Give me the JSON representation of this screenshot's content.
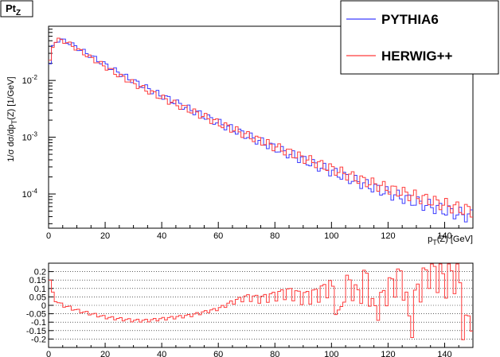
{
  "chart_data": [
    {
      "type": "line",
      "title": "Pt",
      "title_subscript": "Z",
      "xlabel_main": "p",
      "xlabel_sub": "T",
      "xlabel_rest": "(Z) [GeV]",
      "ylabel_main": "1/σ dσ/dp",
      "ylabel_sub": "T",
      "ylabel_rest": "(Z) [1/GeV]",
      "xlim": [
        0,
        150
      ],
      "ylim": [
        2.5e-05,
        0.09
      ],
      "yscale": "log",
      "x_ticks": [
        "0",
        "20",
        "40",
        "60",
        "80",
        "100",
        "120",
        "140"
      ],
      "y_ticks": [
        {
          "base": "10",
          "exp": "-2",
          "value": 0.01
        },
        {
          "base": "10",
          "exp": "-3",
          "value": 0.001
        },
        {
          "base": "10",
          "exp": "-4",
          "value": 0.0001
        }
      ],
      "legend_position": "top-right",
      "series": [
        {
          "name": "PYTHIA6",
          "color": "#3c3cff",
          "x": [
            0,
            1,
            2,
            3,
            4,
            5,
            6,
            8,
            10,
            15,
            20,
            25,
            30,
            35,
            40,
            45,
            50,
            60,
            70,
            80,
            90,
            100,
            110,
            120,
            130,
            140,
            145,
            150
          ],
          "values": [
            0.012,
            0.032,
            0.045,
            0.05,
            0.052,
            0.051,
            0.049,
            0.044,
            0.038,
            0.027,
            0.019,
            0.0135,
            0.0098,
            0.0072,
            0.0054,
            0.0041,
            0.0031,
            0.0018,
            0.00108,
            0.00065,
            0.0004,
            0.00025,
            0.00016,
            0.000105,
            7.2e-05,
            5.2e-05,
            4.5e-05,
            4e-05
          ]
        },
        {
          "name": "HERWIG++",
          "color": "#ff3c3c",
          "x": [
            0,
            1,
            2,
            3,
            4,
            5,
            6,
            8,
            10,
            15,
            20,
            25,
            30,
            35,
            40,
            45,
            50,
            60,
            70,
            80,
            90,
            100,
            110,
            120,
            130,
            140,
            145,
            150
          ],
          "values": [
            0.013,
            0.035,
            0.047,
            0.051,
            0.052,
            0.05,
            0.048,
            0.042,
            0.036,
            0.025,
            0.0175,
            0.0122,
            0.0089,
            0.0066,
            0.005,
            0.0038,
            0.003,
            0.00178,
            0.00109,
            0.00068,
            0.00043,
            0.00028,
            0.00018,
            0.000125,
            9e-05,
            6.5e-05,
            5.6e-05,
            5e-05
          ]
        }
      ]
    },
    {
      "type": "line",
      "xlim": [
        0,
        150
      ],
      "ylim": [
        -0.25,
        0.25
      ],
      "x_ticks": [
        "0",
        "20",
        "40",
        "60",
        "80",
        "100",
        "120",
        "140"
      ],
      "y_ticks": [
        "0.2",
        "0.15",
        "0.1",
        "0.05",
        "0",
        "-0.05",
        "-0.1",
        "-0.15",
        "-0.2"
      ],
      "grid": true,
      "series": [
        {
          "color": "#ff3c3c",
          "x": [
            0,
            1,
            2,
            3,
            4,
            5,
            7,
            10,
            15,
            20,
            25,
            30,
            35,
            40,
            45,
            50,
            55,
            60,
            65,
            70,
            75,
            80,
            85,
            90,
            95,
            100,
            103,
            105,
            110,
            112,
            115,
            120,
            125,
            128,
            130,
            135,
            140,
            145,
            147,
            150
          ],
          "values": [
            0.2,
            0.1,
            0.04,
            0.02,
            0.01,
            0.0,
            -0.01,
            -0.03,
            -0.05,
            -0.07,
            -0.08,
            -0.09,
            -0.09,
            -0.08,
            -0.07,
            -0.06,
            -0.04,
            -0.02,
            0.02,
            0.05,
            0.04,
            0.06,
            0.08,
            0.05,
            0.07,
            0.12,
            -0.1,
            0.15,
            0.05,
            0.2,
            -0.05,
            0.1,
            0.18,
            -0.15,
            0.08,
            0.22,
            0.15,
            0.2,
            -0.18,
            0.0
          ]
        }
      ]
    }
  ]
}
